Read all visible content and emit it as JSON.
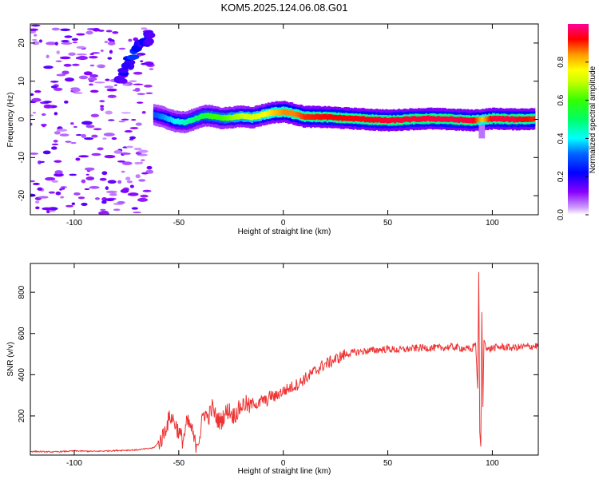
{
  "figure": {
    "title": "KOM5.2025.124.06.08.G01"
  },
  "chart_data": [
    {
      "type": "heatmap",
      "title": "KOM5.2025.124.06.08.G01",
      "xlabel": "Height of straight line (km)",
      "ylabel": "Frequency (Hz)",
      "xlim": [
        -121,
        122
      ],
      "ylim": [
        -25,
        25
      ],
      "xticks": [
        -100,
        -50,
        0,
        50,
        100
      ],
      "yticks": [
        -20,
        -10,
        0,
        10,
        20
      ],
      "x_tick_labels": [
        "-100",
        "-50",
        "0",
        "50",
        "100"
      ],
      "y_tick_labels": [
        "-20",
        "-10",
        "0",
        "10",
        "20"
      ],
      "grid": false,
      "colorbar": {
        "label": "Normalized spectral amplitude",
        "range": [
          0,
          1
        ],
        "ticks": [
          0.0,
          0.2,
          0.4,
          0.6,
          0.8
        ],
        "tick_labels": [
          "0.0",
          "0.2",
          "0.4",
          "0.6",
          "0.8"
        ],
        "colormap": "rainbow",
        "colors": [
          "#cc99ff",
          "#6600ff",
          "#0000ff",
          "#00ccff",
          "#00ff66",
          "#99ff00",
          "#ffff00",
          "#ff9900",
          "#ff0000",
          "#ff00aa"
        ]
      },
      "ridge": {
        "description_free": true,
        "x": [
          -62,
          -57,
          -52,
          -47,
          -42,
          -38,
          -34,
          -30,
          -25,
          -20,
          -15,
          -10,
          -5,
          0,
          5,
          10,
          20,
          30,
          40,
          50,
          60,
          70,
          80,
          90,
          95,
          100,
          110,
          120
        ],
        "y": [
          1.2,
          0.5,
          -0.5,
          -0.8,
          0.2,
          1.0,
          0.8,
          0.3,
          0.5,
          0.8,
          0.5,
          1.2,
          1.8,
          2.0,
          1.4,
          0.7,
          0.6,
          0.3,
          0.0,
          -0.3,
          0.0,
          0.2,
          0.0,
          -0.3,
          -0.1,
          0.2,
          0.0,
          0.1
        ],
        "amplitude": [
          0.3,
          0.35,
          0.4,
          0.45,
          0.5,
          0.55,
          0.6,
          0.6,
          0.65,
          0.7,
          0.72,
          0.75,
          0.8,
          0.85,
          0.85,
          0.9,
          0.92,
          0.92,
          0.93,
          0.95,
          0.95,
          0.95,
          0.96,
          0.95,
          0.8,
          0.95,
          0.95,
          0.9
        ]
      },
      "upper_branch": {
        "x": [
          -78,
          -76,
          -74,
          -72,
          -70,
          -68,
          -66,
          -64
        ],
        "y": [
          11,
          12.5,
          15,
          17,
          19,
          20.5,
          21,
          21.5
        ],
        "amplitude": [
          0.15,
          0.2,
          0.2,
          0.25,
          0.2,
          0.2,
          0.2,
          0.15
        ]
      }
    },
    {
      "type": "line",
      "title": "",
      "xlabel": "Height of straight line (km)",
      "ylabel": "SNR (v/v)",
      "xlim": [
        -121,
        122
      ],
      "ylim": [
        10,
        940
      ],
      "xticks": [
        -100,
        -50,
        0,
        50,
        100
      ],
      "yticks": [
        200,
        400,
        600,
        800
      ],
      "x_tick_labels": [
        "-100",
        "-50",
        "0",
        "50",
        "100"
      ],
      "y_tick_labels": [
        "200",
        "400",
        "600",
        "800"
      ],
      "grid": false,
      "series": [
        {
          "name": "",
          "color": "#ee3333",
          "x": [
            -121,
            -110,
            -100,
            -90,
            -80,
            -70,
            -62,
            -58,
            -56,
            -54,
            -52,
            -50,
            -48,
            -46,
            -44,
            -42,
            -40,
            -38,
            -36,
            -34,
            -32,
            -30,
            -28,
            -26,
            -24,
            -22,
            -20,
            -18,
            -16,
            -14,
            -12,
            -10,
            -8,
            -6,
            -4,
            -2,
            0,
            2,
            4,
            6,
            8,
            10,
            12,
            14,
            16,
            18,
            20,
            22,
            24,
            26,
            28,
            30,
            35,
            40,
            45,
            50,
            55,
            60,
            65,
            70,
            75,
            80,
            85,
            88,
            90,
            92,
            93,
            93.5,
            94,
            94.5,
            95,
            95.5,
            96,
            97,
            98,
            100,
            105,
            110,
            115,
            122
          ],
          "y": [
            28,
            25,
            30,
            28,
            32,
            35,
            45,
            90,
            150,
            200,
            170,
            120,
            80,
            170,
            140,
            60,
            100,
            220,
            190,
            240,
            190,
            170,
            210,
            230,
            200,
            220,
            250,
            260,
            240,
            270,
            250,
            280,
            270,
            300,
            290,
            310,
            320,
            330,
            340,
            350,
            360,
            380,
            390,
            410,
            420,
            440,
            450,
            460,
            470,
            480,
            490,
            500,
            510,
            515,
            520,
            525,
            520,
            525,
            530,
            530,
            530,
            535,
            530,
            525,
            520,
            560,
            330,
            900,
            120,
            50,
            700,
            240,
            570,
            540,
            520,
            530,
            535,
            530,
            535,
            540
          ]
        }
      ]
    }
  ]
}
